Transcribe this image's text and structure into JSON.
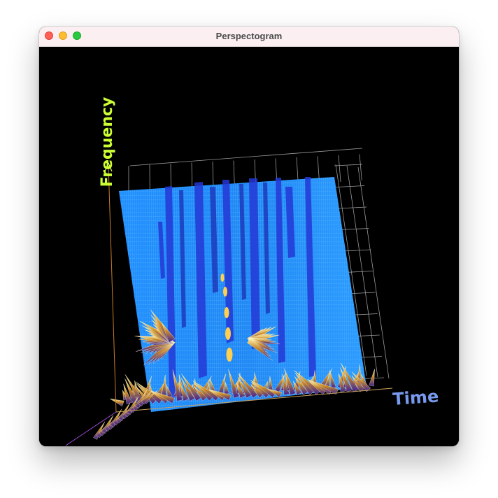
{
  "window": {
    "title": "Perspectogram"
  },
  "plot": {
    "y_axis_label": "Frequency",
    "x_axis_label": "Time",
    "colors": {
      "y_axis_label": "#ccff33",
      "x_axis_label": "#7799ee",
      "grid": "#9a9a9a",
      "surface_low": "#1f8fff",
      "surface_mid": "#2233cc",
      "surface_high": "#ffd24a"
    }
  }
}
